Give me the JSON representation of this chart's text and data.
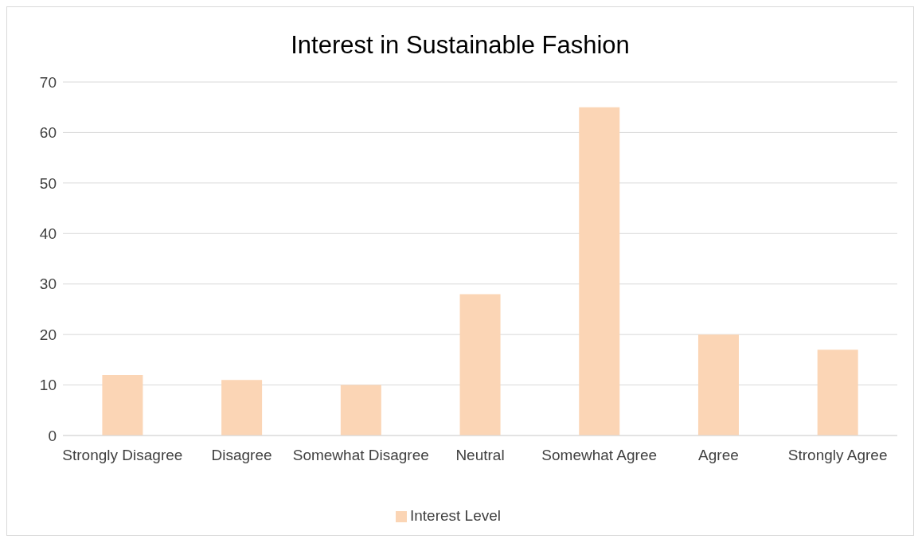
{
  "chart_data": {
    "type": "bar",
    "title": "Interest in Sustainable Fashion",
    "categories": [
      "Strongly Disagree",
      "Disagree",
      "Somewhat Disagree",
      "Neutral",
      "Somewhat Agree",
      "Agree",
      "Strongly Agree"
    ],
    "series": [
      {
        "name": "Interest Level",
        "color": "#fbd5b5",
        "values": [
          12,
          11,
          10,
          28,
          65,
          20,
          17
        ]
      }
    ],
    "ylim": [
      0,
      70
    ],
    "yticks": [
      0,
      10,
      20,
      30,
      40,
      50,
      60,
      70
    ],
    "grid": "y",
    "legend": "bottom"
  }
}
